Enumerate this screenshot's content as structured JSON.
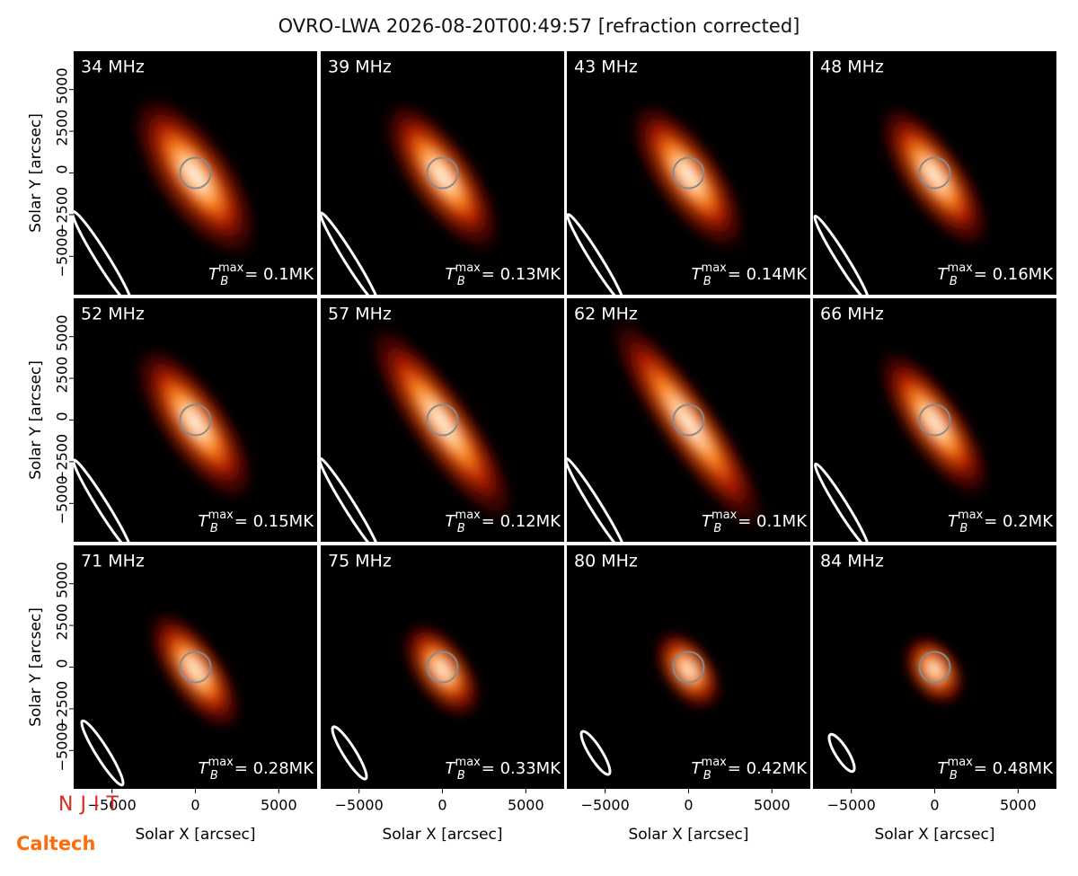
{
  "chart_data": {
    "type": "image-grid",
    "title": "OVRO-LWA 2026-08-20T00:49:57 [refraction corrected]",
    "xlabel": "Solar X [arcsec]",
    "ylabel": "Solar Y [arcsec]",
    "xlim": [
      -7300,
      7300
    ],
    "ylim": [
      -7300,
      7300
    ],
    "xticks": [
      {
        "value": -5000,
        "label": "−5000"
      },
      0,
      5000
    ],
    "yticks": [
      {
        "value": -5000,
        "label": "−5000"
      },
      {
        "value": -2500,
        "label": "−2500"
      },
      0,
      2500,
      5000
    ],
    "tb_symbol": {
      "base": "T",
      "sub": "B",
      "sup": "max"
    },
    "panels": [
      {
        "label": "34 MHz",
        "tb": "= 0.1MK"
      },
      {
        "label": "39 MHz",
        "tb": "= 0.13MK"
      },
      {
        "label": "43 MHz",
        "tb": "= 0.14MK"
      },
      {
        "label": "48 MHz",
        "tb": "= 0.16MK"
      },
      {
        "label": "52 MHz",
        "tb": "= 0.15MK"
      },
      {
        "label": "57 MHz",
        "tb": "= 0.12MK"
      },
      {
        "label": "62 MHz",
        "tb": "= 0.1MK"
      },
      {
        "label": "66 MHz",
        "tb": "= 0.2MK"
      },
      {
        "label": "71 MHz",
        "tb": "= 0.28MK"
      },
      {
        "label": "75 MHz",
        "tb": "= 0.33MK"
      },
      {
        "label": "80 MHz",
        "tb": "= 0.42MK"
      },
      {
        "label": "84 MHz",
        "tb": "= 0.48MK"
      }
    ],
    "logos": [
      "NJIT",
      "Caltech"
    ]
  }
}
